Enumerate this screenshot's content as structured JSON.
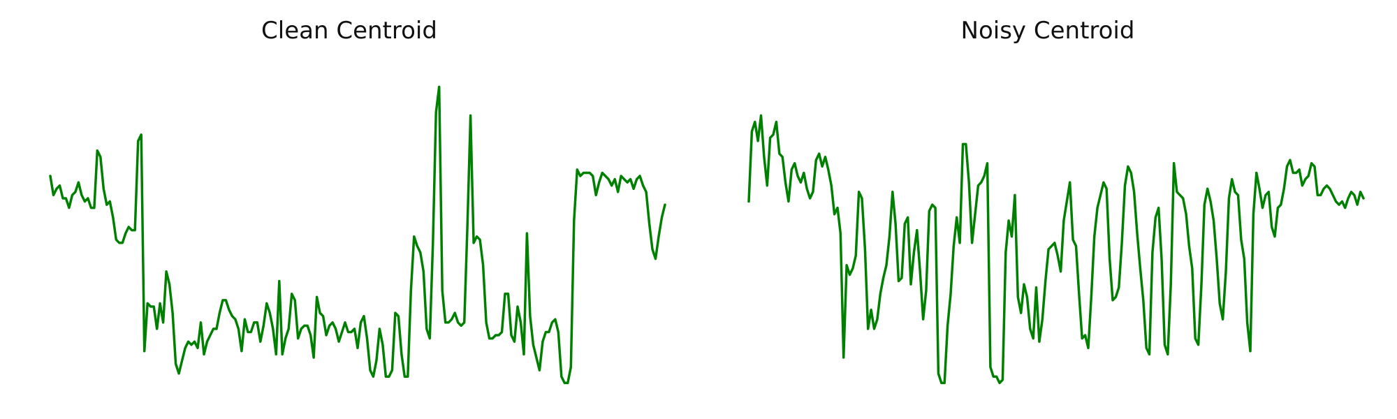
{
  "chart_data": [
    {
      "type": "line",
      "title": "Clean Centroid",
      "xlabel": "",
      "ylabel": "",
      "axes_visible": false,
      "grid": false,
      "ylim": [
        0,
        1
      ],
      "series": [
        {
          "color": "#008000",
          "values": [
            0.66,
            0.6,
            0.62,
            0.63,
            0.59,
            0.59,
            0.56,
            0.6,
            0.61,
            0.64,
            0.6,
            0.58,
            0.59,
            0.56,
            0.56,
            0.74,
            0.72,
            0.62,
            0.57,
            0.58,
            0.53,
            0.46,
            0.45,
            0.45,
            0.48,
            0.5,
            0.49,
            0.49,
            0.77,
            0.79,
            0.11,
            0.26,
            0.25,
            0.25,
            0.18,
            0.26,
            0.2,
            0.36,
            0.32,
            0.23,
            0.07,
            0.04,
            0.08,
            0.12,
            0.14,
            0.13,
            0.14,
            0.12,
            0.2,
            0.1,
            0.14,
            0.16,
            0.18,
            0.18,
            0.23,
            0.27,
            0.27,
            0.24,
            0.22,
            0.21,
            0.18,
            0.11,
            0.21,
            0.17,
            0.17,
            0.2,
            0.2,
            0.14,
            0.19,
            0.26,
            0.23,
            0.18,
            0.1,
            0.33,
            0.1,
            0.15,
            0.18,
            0.29,
            0.27,
            0.15,
            0.18,
            0.19,
            0.19,
            0.16,
            0.09,
            0.28,
            0.23,
            0.22,
            0.16,
            0.19,
            0.2,
            0.18,
            0.14,
            0.17,
            0.2,
            0.17,
            0.17,
            0.18,
            0.12,
            0.2,
            0.22,
            0.15,
            0.05,
            0.03,
            0.08,
            0.18,
            0.13,
            0.03,
            0.03,
            0.05,
            0.23,
            0.22,
            0.1,
            0.03,
            0.03,
            0.3,
            0.47,
            0.44,
            0.42,
            0.36,
            0.18,
            0.15,
            0.45,
            0.86,
            0.94,
            0.3,
            0.2,
            0.2,
            0.21,
            0.23,
            0.2,
            0.19,
            0.2,
            0.5,
            0.85,
            0.45,
            0.47,
            0.46,
            0.38,
            0.2,
            0.15,
            0.15,
            0.16,
            0.16,
            0.17,
            0.29,
            0.29,
            0.16,
            0.14,
            0.25,
            0.2,
            0.1,
            0.48,
            0.22,
            0.13,
            0.09,
            0.05,
            0.14,
            0.17,
            0.17,
            0.2,
            0.21,
            0.17,
            0.03,
            0.01,
            0.01,
            0.06,
            0.52,
            0.68,
            0.66,
            0.67,
            0.67,
            0.67,
            0.66,
            0.6,
            0.64,
            0.67,
            0.66,
            0.65,
            0.63,
            0.65,
            0.61,
            0.66,
            0.65,
            0.64,
            0.65,
            0.62,
            0.65,
            0.66,
            0.63,
            0.61,
            0.51,
            0.43,
            0.4,
            0.47,
            0.53,
            0.57
          ]
        }
      ]
    },
    {
      "type": "line",
      "title": "Noisy Centroid",
      "xlabel": "",
      "ylabel": "",
      "axes_visible": false,
      "grid": false,
      "ylim": [
        0,
        1
      ],
      "series": [
        {
          "color": "#008000",
          "values": [
            0.58,
            0.8,
            0.83,
            0.77,
            0.85,
            0.72,
            0.63,
            0.78,
            0.79,
            0.83,
            0.73,
            0.72,
            0.64,
            0.58,
            0.68,
            0.7,
            0.66,
            0.64,
            0.67,
            0.62,
            0.59,
            0.61,
            0.71,
            0.73,
            0.69,
            0.72,
            0.68,
            0.63,
            0.54,
            0.56,
            0.48,
            0.09,
            0.38,
            0.35,
            0.37,
            0.41,
            0.61,
            0.59,
            0.43,
            0.18,
            0.24,
            0.18,
            0.21,
            0.29,
            0.34,
            0.38,
            0.47,
            0.61,
            0.51,
            0.33,
            0.34,
            0.51,
            0.53,
            0.32,
            0.42,
            0.49,
            0.36,
            0.21,
            0.3,
            0.55,
            0.57,
            0.56,
            0.04,
            0.01,
            0.01,
            0.19,
            0.29,
            0.44,
            0.53,
            0.45,
            0.76,
            0.76,
            0.64,
            0.45,
            0.54,
            0.63,
            0.64,
            0.66,
            0.7,
            0.06,
            0.03,
            0.03,
            0.01,
            0.02,
            0.42,
            0.52,
            0.47,
            0.6,
            0.28,
            0.23,
            0.32,
            0.28,
            0.18,
            0.15,
            0.31,
            0.14,
            0.21,
            0.33,
            0.43,
            0.44,
            0.45,
            0.41,
            0.36,
            0.52,
            0.58,
            0.64,
            0.46,
            0.44,
            0.29,
            0.15,
            0.16,
            0.12,
            0.28,
            0.47,
            0.56,
            0.6,
            0.64,
            0.62,
            0.4,
            0.27,
            0.28,
            0.31,
            0.45,
            0.63,
            0.69,
            0.67,
            0.61,
            0.48,
            0.37,
            0.27,
            0.12,
            0.1,
            0.42,
            0.53,
            0.56,
            0.4,
            0.13,
            0.1,
            0.32,
            0.7,
            0.61,
            0.6,
            0.59,
            0.54,
            0.44,
            0.37,
            0.15,
            0.13,
            0.32,
            0.57,
            0.62,
            0.58,
            0.52,
            0.4,
            0.26,
            0.21,
            0.36,
            0.59,
            0.65,
            0.61,
            0.6,
            0.46,
            0.4,
            0.2,
            0.11,
            0.54,
            0.67,
            0.62,
            0.56,
            0.6,
            0.61,
            0.5,
            0.47,
            0.56,
            0.57,
            0.62,
            0.69,
            0.71,
            0.67,
            0.67,
            0.68,
            0.63,
            0.65,
            0.66,
            0.7,
            0.69,
            0.6,
            0.6,
            0.62,
            0.63,
            0.62,
            0.6,
            0.58,
            0.57,
            0.58,
            0.56,
            0.59,
            0.61,
            0.6,
            0.57,
            0.61,
            0.59
          ]
        }
      ]
    }
  ]
}
